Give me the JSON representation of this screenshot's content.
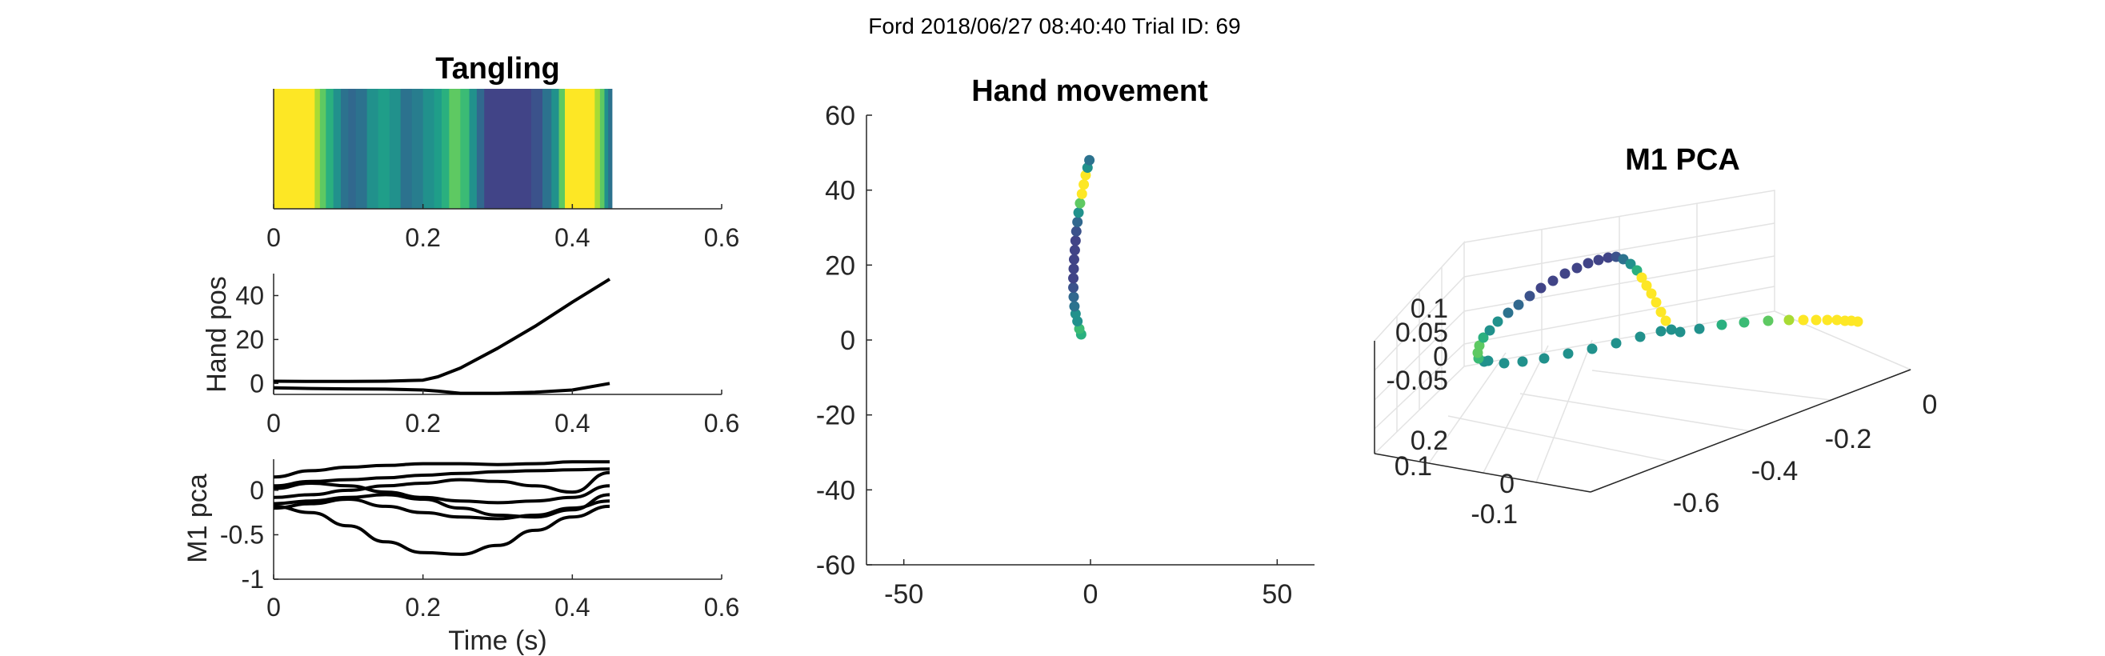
{
  "figure": {
    "suptitle": "Ford 2018/06/27 08:40:40 Trial ID: 69"
  },
  "chart_data": [
    {
      "id": "tangling",
      "type": "heatmap",
      "title": "Tangling",
      "xlabel": "",
      "ylabel": "",
      "xlim": [
        0,
        0.6
      ],
      "xticks": [
        "0",
        "0.2",
        "0.4",
        "0.6"
      ],
      "colormap": "viridis",
      "t_end": 0.453,
      "bins": [
        {
          "t0": 0.0,
          "t1": 0.055,
          "c": "#fde725"
        },
        {
          "t0": 0.055,
          "t1": 0.062,
          "c": "#a8db34"
        },
        {
          "t0": 0.062,
          "t1": 0.07,
          "c": "#5ec962"
        },
        {
          "t0": 0.07,
          "t1": 0.08,
          "c": "#2ab07f"
        },
        {
          "t0": 0.08,
          "t1": 0.09,
          "c": "#21918c"
        },
        {
          "t0": 0.09,
          "t1": 0.1,
          "c": "#2c728e"
        },
        {
          "t0": 0.1,
          "t1": 0.11,
          "c": "#31688e"
        },
        {
          "t0": 0.11,
          "t1": 0.125,
          "c": "#2c728e"
        },
        {
          "t0": 0.125,
          "t1": 0.14,
          "c": "#21918c"
        },
        {
          "t0": 0.14,
          "t1": 0.155,
          "c": "#1f9e89"
        },
        {
          "t0": 0.155,
          "t1": 0.17,
          "c": "#21918c"
        },
        {
          "t0": 0.17,
          "t1": 0.185,
          "c": "#2c728e"
        },
        {
          "t0": 0.185,
          "t1": 0.2,
          "c": "#287d8e"
        },
        {
          "t0": 0.2,
          "t1": 0.215,
          "c": "#21918c"
        },
        {
          "t0": 0.215,
          "t1": 0.225,
          "c": "#1f9e89"
        },
        {
          "t0": 0.225,
          "t1": 0.235,
          "c": "#2ab07f"
        },
        {
          "t0": 0.235,
          "t1": 0.25,
          "c": "#5ec962"
        },
        {
          "t0": 0.25,
          "t1": 0.262,
          "c": "#3bbb75"
        },
        {
          "t0": 0.262,
          "t1": 0.272,
          "c": "#21918c"
        },
        {
          "t0": 0.272,
          "t1": 0.282,
          "c": "#31688e"
        },
        {
          "t0": 0.282,
          "t1": 0.345,
          "c": "#414487"
        },
        {
          "t0": 0.345,
          "t1": 0.36,
          "c": "#3b528b"
        },
        {
          "t0": 0.36,
          "t1": 0.372,
          "c": "#2c728e"
        },
        {
          "t0": 0.372,
          "t1": 0.382,
          "c": "#21918c"
        },
        {
          "t0": 0.382,
          "t1": 0.39,
          "c": "#5ec962"
        },
        {
          "t0": 0.39,
          "t1": 0.43,
          "c": "#fde725"
        },
        {
          "t0": 0.43,
          "t1": 0.437,
          "c": "#a8db34"
        },
        {
          "t0": 0.437,
          "t1": 0.443,
          "c": "#5ec962"
        },
        {
          "t0": 0.443,
          "t1": 0.448,
          "c": "#21918c"
        },
        {
          "t0": 0.448,
          "t1": 0.453,
          "c": "#2c728e"
        }
      ]
    },
    {
      "id": "handpos",
      "type": "line",
      "title": "",
      "xlabel": "",
      "ylabel": "Hand pos",
      "xlim": [
        0,
        0.6
      ],
      "ylim": [
        -5,
        50
      ],
      "xticks": [
        "0",
        "0.2",
        "0.4",
        "0.6"
      ],
      "yticks": [
        0,
        20,
        40
      ],
      "x": [
        0,
        0.05,
        0.1,
        0.15,
        0.2,
        0.22,
        0.25,
        0.3,
        0.35,
        0.4,
        0.45
      ],
      "series": [
        {
          "values": [
            1,
            0.9,
            0.9,
            1,
            1.5,
            3,
            7,
            16,
            26,
            37,
            47.5
          ]
        },
        {
          "values": [
            -2,
            -2.3,
            -2.5,
            -2.6,
            -3,
            -3.5,
            -4.5,
            -4.5,
            -4,
            -3,
            0
          ]
        }
      ]
    },
    {
      "id": "m1pca",
      "type": "line",
      "title": "",
      "xlabel": "Time (s)",
      "ylabel": "M1 pca",
      "xlim": [
        0,
        0.6
      ],
      "ylim": [
        -1,
        0.35
      ],
      "xticks": [
        "0",
        "0.2",
        "0.4",
        "0.6"
      ],
      "yticks": [
        "0",
        "-0.5",
        "-1"
      ],
      "x": [
        0,
        0.05,
        0.1,
        0.15,
        0.2,
        0.25,
        0.3,
        0.35,
        0.4,
        0.45
      ],
      "series": [
        {
          "values": [
            0.15,
            0.22,
            0.26,
            0.28,
            0.3,
            0.3,
            0.29,
            0.3,
            0.32,
            0.32
          ]
        },
        {
          "values": [
            0.05,
            0.1,
            0.12,
            0.14,
            0.17,
            0.19,
            0.21,
            0.22,
            0.23,
            0.24
          ]
        },
        {
          "values": [
            0.02,
            0.08,
            0.05,
            -0.02,
            -0.08,
            -0.12,
            -0.14,
            -0.12,
            -0.08,
            0.05
          ]
        },
        {
          "values": [
            -0.08,
            -0.05,
            0.0,
            0.05,
            0.08,
            0.12,
            0.1,
            0.05,
            -0.02,
            0.2
          ]
        },
        {
          "values": [
            -0.15,
            -0.12,
            -0.08,
            -0.05,
            -0.1,
            -0.2,
            -0.28,
            -0.3,
            -0.22,
            -0.05
          ]
        },
        {
          "values": [
            -0.2,
            -0.15,
            -0.1,
            -0.18,
            -0.25,
            -0.3,
            -0.32,
            -0.28,
            -0.2,
            -0.12
          ]
        },
        {
          "values": [
            -0.18,
            -0.25,
            -0.4,
            -0.58,
            -0.7,
            -0.72,
            -0.62,
            -0.45,
            -0.3,
            -0.18
          ]
        }
      ]
    },
    {
      "id": "hand",
      "type": "scatter",
      "title": "Hand movement",
      "xlabel": "",
      "ylabel": "",
      "xlim": [
        -60,
        60
      ],
      "ylim": [
        -60,
        60
      ],
      "xticks": [
        -50,
        0,
        50
      ],
      "yticks": [
        60,
        40,
        20,
        0,
        -20,
        -40,
        -60
      ],
      "colormap": "viridis",
      "points": [
        {
          "x": -2.5,
          "y": 1.5,
          "c": "#2ab07f"
        },
        {
          "x": -3,
          "y": 3,
          "c": "#3bbb75"
        },
        {
          "x": -3.5,
          "y": 5,
          "c": "#21918c"
        },
        {
          "x": -4,
          "y": 7,
          "c": "#21918c"
        },
        {
          "x": -4.3,
          "y": 9,
          "c": "#2c728e"
        },
        {
          "x": -4.5,
          "y": 11.5,
          "c": "#31688e"
        },
        {
          "x": -4.6,
          "y": 14,
          "c": "#3b528b"
        },
        {
          "x": -4.6,
          "y": 16.5,
          "c": "#414487"
        },
        {
          "x": -4.5,
          "y": 19,
          "c": "#414487"
        },
        {
          "x": -4.4,
          "y": 21.5,
          "c": "#414487"
        },
        {
          "x": -4.2,
          "y": 24,
          "c": "#414487"
        },
        {
          "x": -4,
          "y": 26.5,
          "c": "#414487"
        },
        {
          "x": -3.8,
          "y": 29,
          "c": "#3b528b"
        },
        {
          "x": -3.5,
          "y": 31.5,
          "c": "#31688e"
        },
        {
          "x": -3.2,
          "y": 34,
          "c": "#21918c"
        },
        {
          "x": -2.8,
          "y": 36.5,
          "c": "#5ec962"
        },
        {
          "x": -2.3,
          "y": 39,
          "c": "#fde725"
        },
        {
          "x": -1.8,
          "y": 41.5,
          "c": "#fde725"
        },
        {
          "x": -1.3,
          "y": 44,
          "c": "#fde725"
        },
        {
          "x": -0.8,
          "y": 46,
          "c": "#21918c"
        },
        {
          "x": -0.3,
          "y": 48,
          "c": "#2c728e"
        }
      ]
    },
    {
      "id": "pca3d",
      "type": "scatter",
      "title": "M1 PCA",
      "projection": "3d",
      "colormap": "viridis",
      "grid": true,
      "z_ticks": [
        "0.1",
        "0.05",
        "0",
        "-0.05"
      ],
      "x_ticks": [
        "0",
        "-0.2",
        "-0.4",
        "-0.6"
      ],
      "y_ticks": [
        "0.2",
        "0.1",
        "0",
        "-0.1"
      ]
    }
  ]
}
